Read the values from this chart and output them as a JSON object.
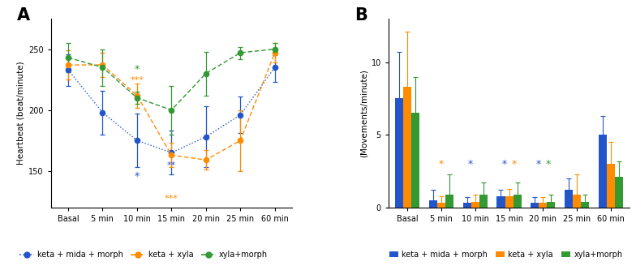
{
  "timepoints": [
    "Basal",
    "5 min",
    "10 min",
    "15 min",
    "20 min",
    "25 min",
    "60 min"
  ],
  "panel_A": {
    "blue_mean": [
      233,
      198,
      175,
      165,
      178,
      196,
      235
    ],
    "blue_err": [
      13,
      18,
      22,
      18,
      25,
      15,
      12
    ],
    "orange_mean": [
      237,
      237,
      212,
      163,
      159,
      175,
      247
    ],
    "orange_err": [
      12,
      10,
      10,
      10,
      8,
      25,
      8
    ],
    "green_mean": [
      243,
      235,
      210,
      200,
      230,
      247,
      250
    ],
    "green_err": [
      12,
      15,
      5,
      20,
      18,
      5,
      5
    ],
    "ylim": [
      120,
      275
    ],
    "yticks": [
      150,
      200,
      250
    ],
    "ylabel": "Heartbeat (beat/minute)"
  },
  "panel_B": {
    "blue_mean": [
      7.5,
      0.5,
      0.3,
      0.8,
      0.3,
      1.2,
      5.0
    ],
    "blue_err": [
      3.2,
      0.7,
      0.4,
      0.4,
      0.4,
      0.8,
      1.3
    ],
    "orange_mean": [
      8.3,
      0.3,
      0.4,
      0.8,
      0.3,
      0.9,
      3.0
    ],
    "orange_err": [
      3.8,
      0.5,
      0.5,
      0.5,
      0.4,
      1.4,
      1.5
    ],
    "green_mean": [
      6.5,
      0.9,
      0.9,
      0.9,
      0.4,
      0.4,
      2.1
    ],
    "green_err": [
      2.5,
      1.4,
      0.8,
      0.8,
      0.5,
      0.5,
      1.1
    ],
    "ylim": [
      0,
      13
    ],
    "yticks": [
      0,
      5,
      10
    ],
    "ylabel": "(Movements/minute)"
  },
  "colors": {
    "blue": "#2255CC",
    "orange": "#FF8C00",
    "green": "#339933"
  },
  "label_A": "A",
  "label_B": "B"
}
